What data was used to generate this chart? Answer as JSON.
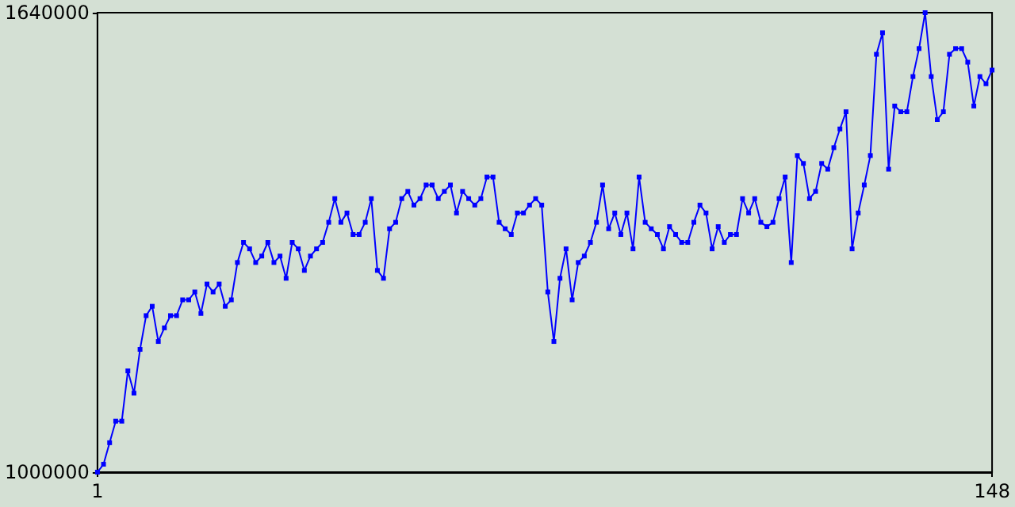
{
  "chart_data": {
    "type": "line",
    "x": [
      1,
      2,
      3,
      4,
      5,
      6,
      7,
      8,
      9,
      10,
      11,
      12,
      13,
      14,
      15,
      16,
      17,
      18,
      19,
      20,
      21,
      22,
      23,
      24,
      25,
      26,
      27,
      28,
      29,
      30,
      31,
      32,
      33,
      34,
      35,
      36,
      37,
      38,
      39,
      40,
      41,
      42,
      43,
      44,
      45,
      46,
      47,
      48,
      49,
      50,
      51,
      52,
      53,
      54,
      55,
      56,
      57,
      58,
      59,
      60,
      61,
      62,
      63,
      64,
      65,
      66,
      67,
      68,
      69,
      70,
      71,
      72,
      73,
      74,
      75,
      76,
      77,
      78,
      79,
      80,
      81,
      82,
      83,
      84,
      85,
      86,
      87,
      88,
      89,
      90,
      91,
      92,
      93,
      94,
      95,
      96,
      97,
      98,
      99,
      100,
      101,
      102,
      103,
      104,
      105,
      106,
      107,
      108,
      109,
      110,
      111,
      112,
      113,
      114,
      115,
      116,
      117,
      118,
      119,
      120,
      121,
      122,
      123,
      124,
      125,
      126,
      127,
      128,
      129,
      130,
      131,
      132,
      133,
      134,
      135,
      136,
      137,
      138,
      139,
      140,
      141,
      142,
      143,
      144,
      145,
      146,
      147,
      148
    ],
    "series": [
      {
        "color": "#0000ff",
        "values": [
          1000000,
          1011000,
          1041000,
          1071000,
          1071000,
          1141000,
          1110000,
          1171000,
          1218000,
          1231000,
          1182000,
          1201000,
          1218000,
          1218000,
          1240000,
          1240000,
          1251000,
          1221000,
          1262000,
          1251000,
          1262000,
          1231000,
          1240000,
          1292000,
          1320000,
          1311000,
          1292000,
          1301000,
          1320000,
          1292000,
          1301000,
          1270000,
          1320000,
          1311000,
          1281000,
          1301000,
          1311000,
          1320000,
          1348000,
          1381000,
          1348000,
          1361000,
          1331000,
          1331000,
          1348000,
          1381000,
          1281000,
          1270000,
          1339000,
          1348000,
          1381000,
          1391000,
          1372000,
          1381000,
          1400000,
          1400000,
          1381000,
          1391000,
          1400000,
          1361000,
          1391000,
          1381000,
          1372000,
          1381000,
          1411000,
          1411000,
          1348000,
          1339000,
          1331000,
          1361000,
          1361000,
          1372000,
          1381000,
          1372000,
          1251000,
          1182000,
          1270000,
          1311000,
          1240000,
          1292000,
          1301000,
          1320000,
          1348000,
          1400000,
          1339000,
          1361000,
          1331000,
          1361000,
          1311000,
          1411000,
          1348000,
          1339000,
          1331000,
          1311000,
          1342000,
          1331000,
          1320000,
          1320000,
          1348000,
          1372000,
          1361000,
          1311000,
          1342000,
          1320000,
          1331000,
          1331000,
          1381000,
          1361000,
          1381000,
          1348000,
          1342000,
          1348000,
          1381000,
          1411000,
          1292000,
          1441000,
          1430000,
          1381000,
          1391000,
          1430000,
          1422000,
          1452000,
          1478000,
          1502000,
          1311000,
          1361000,
          1400000,
          1441000,
          1582000,
          1612000,
          1422000,
          1510000,
          1502000,
          1502000,
          1551000,
          1590000,
          1640000,
          1551000,
          1491000,
          1502000,
          1582000,
          1590000,
          1590000,
          1571000,
          1510000,
          1551000,
          1541000,
          1560000
        ]
      }
    ],
    "xlim": [
      1,
      148
    ],
    "xticks": [
      1,
      148
    ],
    "ylim": [
      1000000,
      1640000
    ],
    "yticks": [
      1000000,
      1640000
    ],
    "grid": false,
    "legend": false,
    "marker": "square",
    "line_style": "solid"
  }
}
